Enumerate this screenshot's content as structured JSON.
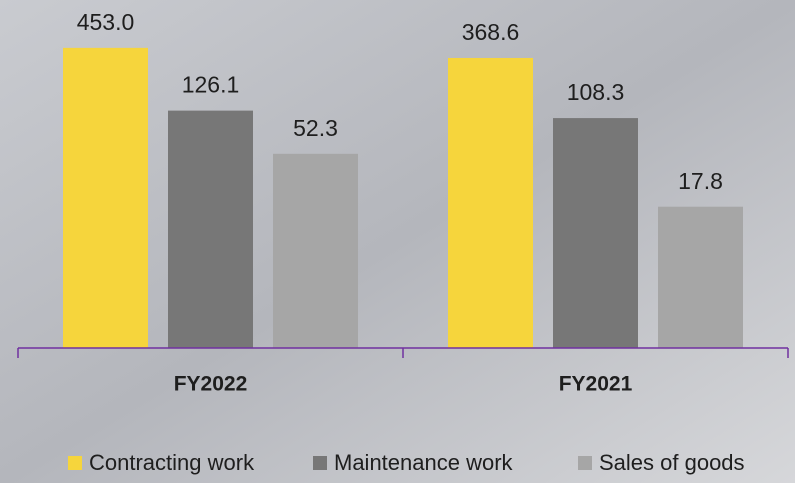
{
  "chart_data": {
    "type": "bar",
    "log_scale": true,
    "ylim": [
      1,
      1000
    ],
    "categories": [
      "FY2022",
      "FY2021"
    ],
    "axis_color": "#7030a0",
    "series": [
      {
        "name": "Contracting work",
        "color": "#f6d53c",
        "values": [
          453.0,
          368.6
        ],
        "value_labels": [
          "453.0",
          "368.6"
        ]
      },
      {
        "name": "Maintenance work",
        "color": "#777777",
        "values": [
          126.1,
          108.3
        ],
        "value_labels": [
          "126.1",
          "108.3"
        ]
      },
      {
        "name": "Sales of goods",
        "color": "#a6a6a6",
        "values": [
          52.3,
          17.8
        ],
        "value_labels": [
          "52.3",
          "17.8"
        ]
      }
    ]
  }
}
